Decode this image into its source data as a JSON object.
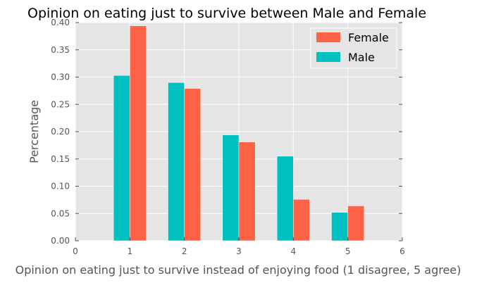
{
  "chart_data": {
    "type": "bar",
    "title": "Opinion on eating just to survive between Male and Female",
    "xlabel": "Opinion on eating just to survive instead of enjoying food (1 disagree, 5 agree)",
    "ylabel": "Percentage",
    "xlim": [
      0,
      6
    ],
    "ylim": [
      0,
      0.4
    ],
    "x_ticks": [
      "0",
      "1",
      "2",
      "3",
      "4",
      "5",
      "6"
    ],
    "y_ticks": [
      "0.00",
      "0.05",
      "0.10",
      "0.15",
      "0.20",
      "0.25",
      "0.30",
      "0.35",
      "0.40"
    ],
    "categories": [
      1,
      2,
      3,
      4,
      5
    ],
    "series": [
      {
        "name": "Female",
        "color": "#ff6347",
        "values": [
          0.394,
          0.279,
          0.181,
          0.076,
          0.064
        ]
      },
      {
        "name": "Male",
        "color": "#00bfbf",
        "values": [
          0.303,
          0.29,
          0.194,
          0.155,
          0.052
        ]
      }
    ],
    "legend_position": "top-right",
    "grid": true,
    "background": "#e5e5e5",
    "grid_color": "#ffffff"
  }
}
